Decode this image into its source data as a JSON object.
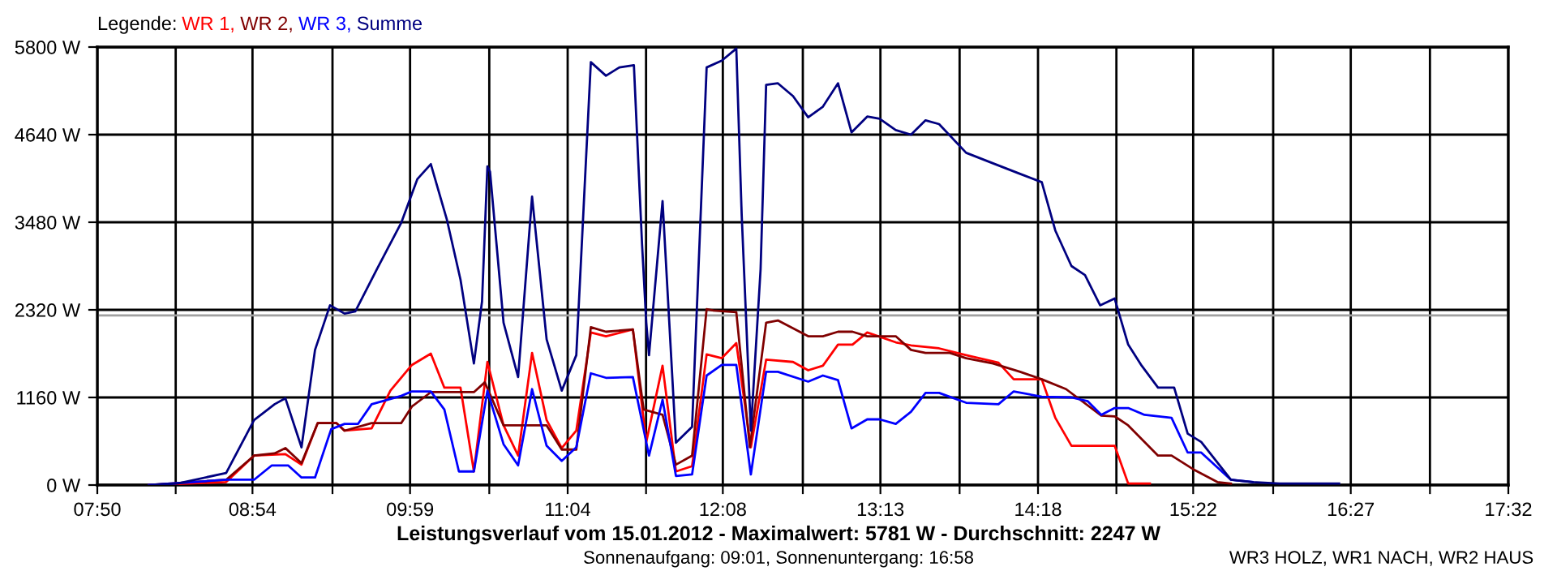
{
  "chart_data": {
    "type": "line",
    "title": "Leistungsverlauf vom 15.01.2012 - Maximalwert: 5781 W - Durchschnitt: 2247 W",
    "subtitle": "Sonnenaufgang: 09:01, Sonnenuntergang: 16:58",
    "annotations": [
      "WR3 HOLZ, WR1 NACH, WR2 HAUS"
    ],
    "legend_title": "Legende:",
    "legend": "top left",
    "grid": true,
    "marker": "none",
    "line_style": "solid",
    "xlim": [
      7.8333,
      17.5333
    ],
    "ylim": [
      0,
      5800
    ],
    "xticks": [
      {
        "value": 7.8333,
        "label": "07:50"
      },
      {
        "value": 8.3722,
        "label": null
      },
      {
        "value": 8.9,
        "label": "08:54"
      },
      {
        "value": 9.45,
        "label": null
      },
      {
        "value": 9.9833,
        "label": "09:59"
      },
      {
        "value": 10.5278,
        "label": null
      },
      {
        "value": 11.0667,
        "label": "11:04"
      },
      {
        "value": 11.6056,
        "label": null
      },
      {
        "value": 12.1333,
        "label": "12:08"
      },
      {
        "value": 12.6833,
        "label": null
      },
      {
        "value": 13.2167,
        "label": "13:13"
      },
      {
        "value": 13.7611,
        "label": null
      },
      {
        "value": 14.3,
        "label": "14:18"
      },
      {
        "value": 14.8389,
        "label": null
      },
      {
        "value": 15.3667,
        "label": "15:22"
      },
      {
        "value": 15.9167,
        "label": null
      },
      {
        "value": 16.45,
        "label": "16:27"
      },
      {
        "value": 16.9944,
        "label": null
      },
      {
        "value": 17.5333,
        "label": "17:32"
      }
    ],
    "yticks": [
      {
        "value": 0,
        "label": "0 W"
      },
      {
        "value": 1160,
        "label": "1160 W"
      },
      {
        "value": 2320,
        "label": "2320 W"
      },
      {
        "value": 3480,
        "label": "3480 W"
      },
      {
        "value": 4640,
        "label": "4640 W"
      },
      {
        "value": 5800,
        "label": "5800 W"
      }
    ],
    "ref_lines": [
      {
        "axis": "y",
        "value": 2247,
        "label": null,
        "color": "#a0a0a0"
      }
    ],
    "series": [
      {
        "name": "WR 1,",
        "color": "#ff0000",
        "x": [
          8.189,
          8.719,
          8.911,
          9.126,
          9.237,
          9.348,
          9.478,
          9.533,
          9.719,
          9.848,
          9.996,
          10.126,
          10.219,
          10.33,
          10.422,
          10.515,
          10.626,
          10.726,
          10.822,
          10.922,
          11.026,
          11.126,
          11.226,
          11.33,
          11.515,
          11.607,
          11.719,
          11.811,
          11.922,
          12.022,
          12.126,
          12.226,
          12.326,
          12.431,
          12.616,
          12.72,
          12.821,
          12.925,
          13.025,
          13.126,
          13.322,
          13.427,
          13.62,
          13.806,
          14.028,
          14.133,
          14.326,
          14.419,
          14.53,
          14.827,
          14.92,
          15.069
        ],
        "values": [
          0,
          40,
          390,
          410,
          270,
          820,
          820,
          720,
          750,
          1250,
          1590,
          1740,
          1290,
          1290,
          180,
          1630,
          790,
          390,
          1750,
          860,
          490,
          720,
          2020,
          1970,
          2060,
          570,
          1580,
          180,
          250,
          1730,
          1680,
          1880,
          500,
          1660,
          1630,
          1520,
          1580,
          1860,
          1860,
          2020,
          1890,
          1850,
          1810,
          1720,
          1620,
          1400,
          1400,
          890,
          520,
          520,
          20,
          20
        ]
      },
      {
        "name": "WR 2,",
        "color": "#800000",
        "x": [
          8.189,
          8.719,
          8.911,
          9.052,
          9.126,
          9.237,
          9.348,
          9.478,
          9.533,
          9.719,
          9.922,
          9.996,
          10.126,
          10.422,
          10.497,
          10.626,
          10.922,
          11.026,
          11.126,
          11.226,
          11.33,
          11.515,
          11.589,
          11.719,
          11.811,
          11.922,
          12.022,
          12.07,
          12.226,
          12.319,
          12.431,
          12.512,
          12.72,
          12.821,
          12.925,
          13.025,
          13.126,
          13.322,
          13.427,
          13.527,
          13.694,
          13.806,
          13.991,
          14.177,
          14.326,
          14.493,
          14.735,
          14.827,
          14.92,
          15.125,
          15.218,
          15.366,
          15.533,
          15.626
        ],
        "values": [
          0,
          70,
          390,
          420,
          490,
          290,
          820,
          820,
          720,
          820,
          820,
          1040,
          1230,
          1230,
          1360,
          790,
          790,
          470,
          470,
          2090,
          2030,
          2060,
          1000,
          930,
          270,
          390,
          2330,
          2310,
          2290,
          500,
          2150,
          2180,
          1970,
          1970,
          2030,
          2030,
          1970,
          1970,
          1790,
          1750,
          1750,
          1680,
          1610,
          1500,
          1400,
          1270,
          920,
          910,
          790,
          390,
          390,
          210,
          40,
          20
        ]
      },
      {
        "name": "WR 3,",
        "color": "#0000ff",
        "x": [
          8.189,
          8.719,
          8.911,
          9.033,
          9.145,
          9.237,
          9.33,
          9.441,
          9.533,
          9.626,
          9.719,
          9.922,
          9.996,
          10.126,
          10.219,
          10.319,
          10.422,
          10.515,
          10.626,
          10.726,
          10.822,
          10.922,
          11.026,
          11.126,
          11.226,
          11.33,
          11.515,
          11.626,
          11.719,
          11.811,
          11.922,
          12.022,
          12.126,
          12.226,
          12.326,
          12.431,
          12.512,
          12.72,
          12.821,
          12.925,
          13.018,
          13.126,
          13.211,
          13.322,
          13.427,
          13.527,
          13.62,
          13.806,
          14.028,
          14.133,
          14.326,
          14.53,
          14.642,
          14.735,
          14.827,
          14.92,
          15.032,
          15.218,
          15.329,
          15.422,
          15.626,
          15.775
        ],
        "values": [
          0,
          70,
          70,
          260,
          260,
          100,
          100,
          740,
          810,
          810,
          1070,
          1180,
          1240,
          1240,
          1000,
          180,
          180,
          1250,
          540,
          260,
          1270,
          520,
          320,
          500,
          1480,
          1420,
          1430,
          390,
          1130,
          120,
          140,
          1450,
          1590,
          1590,
          140,
          1500,
          1500,
          1370,
          1450,
          1390,
          750,
          870,
          870,
          810,
          970,
          1220,
          1220,
          1090,
          1070,
          1240,
          1170,
          1160,
          1110,
          930,
          1020,
          1020,
          930,
          890,
          430,
          430,
          70,
          40
        ]
      },
      {
        "name": "Summe",
        "color": "#000080",
        "x": [
          8.189,
          8.385,
          8.719,
          8.911,
          9.052,
          9.126,
          9.237,
          9.33,
          9.433,
          9.533,
          9.607,
          9.756,
          9.922,
          10.033,
          10.126,
          10.237,
          10.33,
          10.422,
          10.478,
          10.515,
          10.533,
          10.626,
          10.726,
          10.822,
          10.922,
          11.026,
          11.126,
          11.226,
          11.33,
          11.422,
          11.522,
          11.578,
          11.607,
          11.626,
          11.719,
          11.811,
          11.922,
          12.022,
          12.126,
          12.226,
          12.263,
          12.326,
          12.393,
          12.431,
          12.512,
          12.616,
          12.72,
          12.821,
          12.925,
          13.018,
          13.126,
          13.211,
          13.322,
          13.427,
          13.527,
          13.62,
          13.806,
          13.991,
          14.177,
          14.326,
          14.419,
          14.53,
          14.623,
          14.727,
          14.827,
          14.92,
          15.013,
          15.125,
          15.236,
          15.329,
          15.422,
          15.626,
          15.775,
          15.961,
          16.184,
          16.37
        ],
        "values": [
          0,
          20,
          160,
          860,
          1070,
          1150,
          500,
          1790,
          2380,
          2270,
          2300,
          2860,
          3470,
          4050,
          4250,
          3510,
          2720,
          1610,
          2430,
          4220,
          4150,
          2150,
          1430,
          3820,
          1930,
          1250,
          1720,
          5600,
          5420,
          5530,
          5560,
          3190,
          2150,
          1720,
          3760,
          560,
          770,
          5530,
          5620,
          5780,
          3580,
          720,
          2860,
          5300,
          5320,
          5150,
          4870,
          5010,
          5320,
          4670,
          4880,
          4850,
          4700,
          4640,
          4830,
          4780,
          4400,
          4260,
          4120,
          4010,
          3370,
          2900,
          2780,
          2380,
          2470,
          1860,
          1580,
          1290,
          1290,
          680,
          570,
          70,
          40,
          20,
          20,
          20
        ]
      }
    ]
  }
}
